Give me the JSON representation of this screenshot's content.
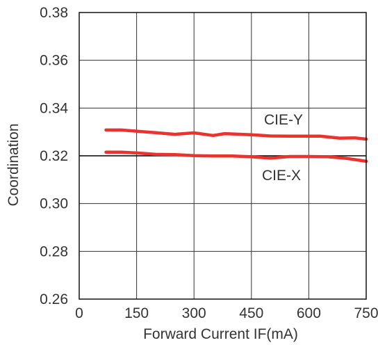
{
  "chart_data": {
    "type": "line",
    "xlabel": "Forward Current IF(mA)",
    "ylabel": "Coordination",
    "xlim": [
      0,
      750
    ],
    "ylim": [
      0.26,
      0.38
    ],
    "x_ticks": [
      0,
      150,
      300,
      450,
      600,
      750
    ],
    "x_tick_labels": [
      "0",
      "150",
      "300",
      "450",
      "600",
      "750"
    ],
    "y_ticks": [
      0.26,
      0.28,
      0.3,
      0.32,
      0.34,
      0.36,
      0.38
    ],
    "y_tick_labels": [
      "0.26",
      "0.28",
      "0.30",
      "0.32",
      "0.34",
      "0.36",
      "0.38"
    ],
    "grid": true,
    "series": [
      {
        "name": "CIE-Y",
        "color": "#e8332e",
        "x": [
          70,
          110,
          150,
          200,
          250,
          300,
          350,
          380,
          450,
          500,
          550,
          600,
          630,
          680,
          720,
          750
        ],
        "y": [
          0.3308,
          0.3308,
          0.3303,
          0.3297,
          0.329,
          0.3296,
          0.3285,
          0.3293,
          0.3288,
          0.3283,
          0.3282,
          0.3282,
          0.3282,
          0.3274,
          0.3275,
          0.327
        ]
      },
      {
        "name": "CIE-X",
        "color": "#e8332e",
        "x": [
          70,
          110,
          150,
          200,
          250,
          300,
          350,
          400,
          450,
          500,
          550,
          600,
          650,
          700,
          750
        ],
        "y": [
          0.3215,
          0.3215,
          0.3212,
          0.3206,
          0.3205,
          0.3201,
          0.3199,
          0.3199,
          0.3196,
          0.319,
          0.3197,
          0.3197,
          0.3196,
          0.3189,
          0.3177
        ]
      }
    ],
    "reference_line": {
      "y": 0.32,
      "color": "#000000"
    }
  }
}
